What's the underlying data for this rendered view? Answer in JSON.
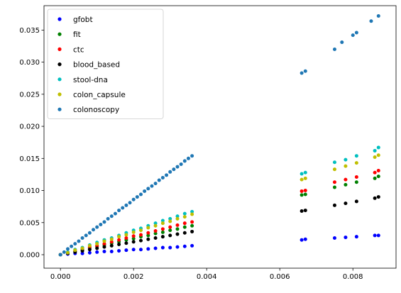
{
  "chart_data": {
    "type": "scatter",
    "title": "",
    "xlabel": "",
    "ylabel": "",
    "xlim": [
      -0.00045,
      0.00918
    ],
    "ylim": [
      -0.0021,
      0.0388
    ],
    "xticks": [
      "0.000",
      "0.002",
      "0.004",
      "0.006",
      "0.008"
    ],
    "yticks": [
      "0.000",
      "0.005",
      "0.010",
      "0.015",
      "0.020",
      "0.025",
      "0.030",
      "0.035"
    ],
    "grid": false,
    "legend_position": "top-left",
    "series": [
      {
        "name": "gfobt",
        "color": "#0000ff",
        "points": [
          [
            0.0,
            0.0
          ],
          [
            0.0002,
            0.0001
          ],
          [
            0.0004,
            0.0002
          ],
          [
            0.0006,
            0.0002
          ],
          [
            0.0008,
            0.0003
          ],
          [
            0.001,
            0.0004
          ],
          [
            0.0012,
            0.0005
          ],
          [
            0.0014,
            0.0005
          ],
          [
            0.0016,
            0.0006
          ],
          [
            0.0018,
            0.0007
          ],
          [
            0.002,
            0.0008
          ],
          [
            0.0022,
            0.0008
          ],
          [
            0.0024,
            0.0009
          ],
          [
            0.0026,
            0.001
          ],
          [
            0.0028,
            0.0011
          ],
          [
            0.003,
            0.0011
          ],
          [
            0.0032,
            0.0012
          ],
          [
            0.0034,
            0.0013
          ],
          [
            0.0036,
            0.0014
          ],
          [
            0.0066,
            0.0023
          ],
          [
            0.0067,
            0.0024
          ],
          [
            0.0075,
            0.0026
          ],
          [
            0.0078,
            0.0027
          ],
          [
            0.0081,
            0.0028
          ],
          [
            0.0086,
            0.003
          ],
          [
            0.0087,
            0.003
          ]
        ]
      },
      {
        "name": "fit",
        "color": "#008000",
        "points": [
          [
            0.0,
            0.0
          ],
          [
            0.0002,
            0.0003
          ],
          [
            0.0004,
            0.0005
          ],
          [
            0.0006,
            0.0008
          ],
          [
            0.0008,
            0.001
          ],
          [
            0.001,
            0.0013
          ],
          [
            0.0012,
            0.0015
          ],
          [
            0.0014,
            0.0018
          ],
          [
            0.0016,
            0.002
          ],
          [
            0.0018,
            0.0023
          ],
          [
            0.002,
            0.0025
          ],
          [
            0.0022,
            0.0028
          ],
          [
            0.0024,
            0.003
          ],
          [
            0.0026,
            0.0033
          ],
          [
            0.0028,
            0.0035
          ],
          [
            0.003,
            0.0038
          ],
          [
            0.0032,
            0.004
          ],
          [
            0.0034,
            0.0043
          ],
          [
            0.0036,
            0.0045
          ],
          [
            0.0066,
            0.0093
          ],
          [
            0.0067,
            0.0094
          ],
          [
            0.0075,
            0.0105
          ],
          [
            0.0078,
            0.0109
          ],
          [
            0.0081,
            0.0113
          ],
          [
            0.0086,
            0.0119
          ],
          [
            0.0087,
            0.0122
          ]
        ]
      },
      {
        "name": "ctc",
        "color": "#ff0000",
        "points": [
          [
            0.0,
            0.0
          ],
          [
            0.0002,
            0.0003
          ],
          [
            0.0004,
            0.0006
          ],
          [
            0.0006,
            0.0009
          ],
          [
            0.0008,
            0.0012
          ],
          [
            0.001,
            0.0014
          ],
          [
            0.0012,
            0.0017
          ],
          [
            0.0014,
            0.002
          ],
          [
            0.0016,
            0.0023
          ],
          [
            0.0018,
            0.0026
          ],
          [
            0.002,
            0.0029
          ],
          [
            0.0022,
            0.0031
          ],
          [
            0.0024,
            0.0034
          ],
          [
            0.0026,
            0.0037
          ],
          [
            0.0028,
            0.004
          ],
          [
            0.003,
            0.0043
          ],
          [
            0.0032,
            0.0046
          ],
          [
            0.0034,
            0.0049
          ],
          [
            0.0036,
            0.0051
          ],
          [
            0.0066,
            0.0099
          ],
          [
            0.0067,
            0.01
          ],
          [
            0.0075,
            0.0113
          ],
          [
            0.0078,
            0.0117
          ],
          [
            0.0081,
            0.0121
          ],
          [
            0.0086,
            0.0128
          ],
          [
            0.0087,
            0.0131
          ]
        ]
      },
      {
        "name": "blood_based",
        "color": "#000000",
        "points": [
          [
            0.0,
            0.0
          ],
          [
            0.0002,
            0.0002
          ],
          [
            0.0004,
            0.0004
          ],
          [
            0.0006,
            0.0006
          ],
          [
            0.0008,
            0.0008
          ],
          [
            0.001,
            0.001
          ],
          [
            0.0012,
            0.0012
          ],
          [
            0.0014,
            0.0014
          ],
          [
            0.0016,
            0.0016
          ],
          [
            0.0018,
            0.0018
          ],
          [
            0.002,
            0.002
          ],
          [
            0.0022,
            0.0022
          ],
          [
            0.0024,
            0.0024
          ],
          [
            0.0026,
            0.0026
          ],
          [
            0.0028,
            0.0028
          ],
          [
            0.003,
            0.003
          ],
          [
            0.0032,
            0.0032
          ],
          [
            0.0034,
            0.0034
          ],
          [
            0.0036,
            0.0036
          ],
          [
            0.0066,
            0.0068
          ],
          [
            0.0067,
            0.0069
          ],
          [
            0.0075,
            0.0077
          ],
          [
            0.0078,
            0.008
          ],
          [
            0.0081,
            0.0083
          ],
          [
            0.0086,
            0.0088
          ],
          [
            0.0087,
            0.009
          ]
        ]
      },
      {
        "name": "stool-dna",
        "color": "#00bfbf",
        "points": [
          [
            0.0,
            0.0
          ],
          [
            0.0002,
            0.0004
          ],
          [
            0.0004,
            0.0008
          ],
          [
            0.0006,
            0.0011
          ],
          [
            0.0008,
            0.0015
          ],
          [
            0.001,
            0.0019
          ],
          [
            0.0012,
            0.0023
          ],
          [
            0.0014,
            0.0026
          ],
          [
            0.0016,
            0.003
          ],
          [
            0.0018,
            0.0034
          ],
          [
            0.002,
            0.0038
          ],
          [
            0.0022,
            0.0041
          ],
          [
            0.0024,
            0.0045
          ],
          [
            0.0026,
            0.0049
          ],
          [
            0.0028,
            0.0053
          ],
          [
            0.003,
            0.0056
          ],
          [
            0.0032,
            0.006
          ],
          [
            0.0034,
            0.0064
          ],
          [
            0.0036,
            0.0067
          ],
          [
            0.0066,
            0.0126
          ],
          [
            0.0067,
            0.0128
          ],
          [
            0.0075,
            0.0144
          ],
          [
            0.0078,
            0.0148
          ],
          [
            0.0081,
            0.0154
          ],
          [
            0.0086,
            0.0162
          ],
          [
            0.0087,
            0.0167
          ]
        ]
      },
      {
        "name": "colon_capsule",
        "color": "#bfbf00",
        "points": [
          [
            0.0,
            0.0
          ],
          [
            0.0002,
            0.0003
          ],
          [
            0.0004,
            0.0007
          ],
          [
            0.0006,
            0.001
          ],
          [
            0.0008,
            0.0014
          ],
          [
            0.001,
            0.0017
          ],
          [
            0.0012,
            0.0021
          ],
          [
            0.0014,
            0.0024
          ],
          [
            0.0016,
            0.0028
          ],
          [
            0.0018,
            0.0031
          ],
          [
            0.002,
            0.0035
          ],
          [
            0.0022,
            0.0038
          ],
          [
            0.0024,
            0.0042
          ],
          [
            0.0026,
            0.0045
          ],
          [
            0.0028,
            0.0049
          ],
          [
            0.003,
            0.0052
          ],
          [
            0.0032,
            0.0056
          ],
          [
            0.0034,
            0.0059
          ],
          [
            0.0036,
            0.0063
          ],
          [
            0.0066,
            0.0117
          ],
          [
            0.0067,
            0.0119
          ],
          [
            0.0075,
            0.0133
          ],
          [
            0.0078,
            0.0138
          ],
          [
            0.0081,
            0.0143
          ],
          [
            0.0086,
            0.0152
          ],
          [
            0.0087,
            0.0155
          ]
        ]
      },
      {
        "name": "colonoscopy",
        "color": "#1f77b4",
        "points": [
          [
            0.0,
            0.0
          ],
          [
            0.0001,
            0.0004
          ],
          [
            0.0002,
            0.0009
          ],
          [
            0.0003,
            0.0013
          ],
          [
            0.0004,
            0.0017
          ],
          [
            0.0005,
            0.0021
          ],
          [
            0.0006,
            0.0026
          ],
          [
            0.0007,
            0.003
          ],
          [
            0.0008,
            0.0034
          ],
          [
            0.0009,
            0.0039
          ],
          [
            0.001,
            0.0043
          ],
          [
            0.0011,
            0.0047
          ],
          [
            0.0012,
            0.0051
          ],
          [
            0.0013,
            0.0056
          ],
          [
            0.0014,
            0.006
          ],
          [
            0.0015,
            0.0064
          ],
          [
            0.0016,
            0.0069
          ],
          [
            0.0017,
            0.0073
          ],
          [
            0.0018,
            0.0077
          ],
          [
            0.0019,
            0.0081
          ],
          [
            0.002,
            0.0086
          ],
          [
            0.0021,
            0.009
          ],
          [
            0.0022,
            0.0094
          ],
          [
            0.0023,
            0.0099
          ],
          [
            0.0024,
            0.0103
          ],
          [
            0.0025,
            0.0107
          ],
          [
            0.0026,
            0.0111
          ],
          [
            0.0027,
            0.0116
          ],
          [
            0.0028,
            0.012
          ],
          [
            0.0029,
            0.0124
          ],
          [
            0.003,
            0.0129
          ],
          [
            0.0031,
            0.0133
          ],
          [
            0.0032,
            0.0137
          ],
          [
            0.0033,
            0.0141
          ],
          [
            0.0034,
            0.0146
          ],
          [
            0.0035,
            0.015
          ],
          [
            0.0036,
            0.0154
          ],
          [
            0.0066,
            0.0283
          ],
          [
            0.0067,
            0.0286
          ],
          [
            0.0075,
            0.032
          ],
          [
            0.0077,
            0.0331
          ],
          [
            0.008,
            0.0342
          ],
          [
            0.0081,
            0.0346
          ],
          [
            0.0085,
            0.0364
          ],
          [
            0.0087,
            0.0372
          ]
        ]
      }
    ]
  }
}
